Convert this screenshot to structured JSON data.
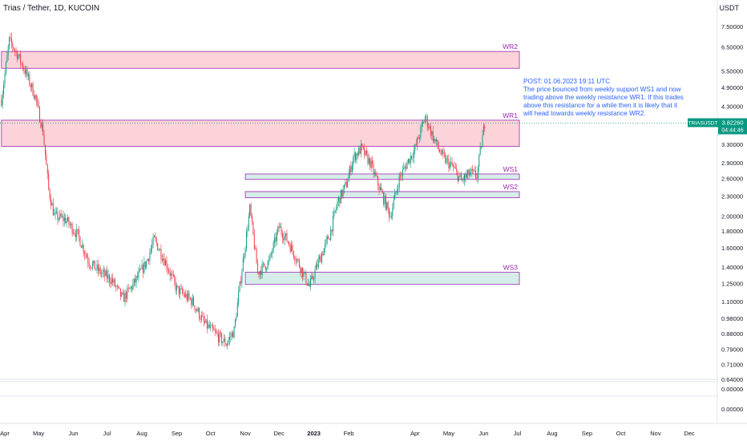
{
  "header": {
    "title": "Trias / Tether, 1D, KUCOIN",
    "currency": "USDT"
  },
  "note": {
    "line1": "POST: 01.06.2023 19:11 UTC",
    "line2": "The price bounced from weekly support WS1 and now trading above the weekly resistance WR1. If this trades above this resistance for a while then it is likely that it will head towards weekly resistance WR2."
  },
  "last_price": {
    "symbol": "TRIASUSDT",
    "price": "3.82260",
    "countdown": "04:44:46",
    "color": "#089981"
  },
  "colors": {
    "up": "#089981",
    "down": "#f23645",
    "resistance_fill": "#fccbd1",
    "resistance_border": "#9c27b0",
    "support_fill": "#cce8e4",
    "zone_label": "#9c27b0",
    "note_text": "#2962ff"
  },
  "chart_data": {
    "type": "candlestick",
    "title": "Trias / Tether, 1D, KUCOIN",
    "y_scale": "log",
    "y_ticks": [
      {
        "value": 7.5,
        "label": "7.50000"
      },
      {
        "value": 6.5,
        "label": "6.50000"
      },
      {
        "value": 5.5,
        "label": "5.50000"
      },
      {
        "value": 4.9,
        "label": "4.90000"
      },
      {
        "value": 4.3,
        "label": "4.30000"
      },
      {
        "value": 3.3,
        "label": "3.30000"
      },
      {
        "value": 2.9,
        "label": "2.90000"
      },
      {
        "value": 2.6,
        "label": "2.60000"
      },
      {
        "value": 2.3,
        "label": "2.30000"
      },
      {
        "value": 2.0,
        "label": "2.00000"
      },
      {
        "value": 1.8,
        "label": "1.80000"
      },
      {
        "value": 1.6,
        "label": "1.60000"
      },
      {
        "value": 1.4,
        "label": "1.40000"
      },
      {
        "value": 1.25,
        "label": "1.25000"
      },
      {
        "value": 1.1,
        "label": "1.10000"
      },
      {
        "value": 0.98,
        "label": "0.98000"
      },
      {
        "value": 0.88,
        "label": "0.88000"
      },
      {
        "value": 0.79,
        "label": "0.79000"
      },
      {
        "value": 0.71,
        "label": "0.71000"
      },
      {
        "value": 0.64,
        "label": "0.64000"
      }
    ],
    "pane_ticks": [
      "0.00000",
      "0.00000"
    ],
    "x_labels": [
      "Apr",
      "May",
      "Jun",
      "Jul",
      "Aug",
      "Sep",
      "Oct",
      "Nov",
      "Dec",
      "2023",
      "Feb",
      "Apr",
      "May",
      "Jun",
      "Jul",
      "Aug",
      "Sep",
      "Oct",
      "Nov",
      "Dec"
    ],
    "x_label_dates": [
      "2022-04-01",
      "2022-05-01",
      "2022-06-01",
      "2022-07-01",
      "2022-08-01",
      "2022-09-01",
      "2022-10-01",
      "2022-11-01",
      "2022-12-01",
      "2023-01-01",
      "2023-02-01",
      "2023-04-01",
      "2023-05-01",
      "2023-06-01",
      "2023-07-01",
      "2023-08-01",
      "2023-09-01",
      "2023-10-01",
      "2023-11-01",
      "2023-12-01"
    ],
    "series": [
      {
        "date": "2022-03-29",
        "close": 4.5
      },
      {
        "date": "2022-04-05",
        "close": 6.8
      },
      {
        "date": "2022-04-12",
        "close": 6.2
      },
      {
        "date": "2022-04-20",
        "close": 5.4
      },
      {
        "date": "2022-04-28",
        "close": 4.6
      },
      {
        "date": "2022-05-05",
        "close": 3.6
      },
      {
        "date": "2022-05-10",
        "close": 2.4
      },
      {
        "date": "2022-05-15",
        "close": 2.0
      },
      {
        "date": "2022-05-25",
        "close": 1.95
      },
      {
        "date": "2022-06-05",
        "close": 1.75
      },
      {
        "date": "2022-06-15",
        "close": 1.45
      },
      {
        "date": "2022-06-25",
        "close": 1.35
      },
      {
        "date": "2022-07-05",
        "close": 1.28
      },
      {
        "date": "2022-07-15",
        "close": 1.12
      },
      {
        "date": "2022-07-25",
        "close": 1.25
      },
      {
        "date": "2022-08-05",
        "close": 1.45
      },
      {
        "date": "2022-08-12",
        "close": 1.7
      },
      {
        "date": "2022-08-22",
        "close": 1.45
      },
      {
        "date": "2022-09-01",
        "close": 1.2
      },
      {
        "date": "2022-09-15",
        "close": 1.1
      },
      {
        "date": "2022-09-25",
        "close": 0.95
      },
      {
        "date": "2022-10-05",
        "close": 0.88
      },
      {
        "date": "2022-10-15",
        "close": 0.82
      },
      {
        "date": "2022-10-22",
        "close": 0.9
      },
      {
        "date": "2022-10-28",
        "close": 1.3
      },
      {
        "date": "2022-11-05",
        "close": 2.1
      },
      {
        "date": "2022-11-12",
        "close": 1.35
      },
      {
        "date": "2022-11-22",
        "close": 1.45
      },
      {
        "date": "2022-12-01",
        "close": 1.85
      },
      {
        "date": "2022-12-10",
        "close": 1.65
      },
      {
        "date": "2022-12-20",
        "close": 1.4
      },
      {
        "date": "2022-12-28",
        "close": 1.22
      },
      {
        "date": "2023-01-05",
        "close": 1.45
      },
      {
        "date": "2023-01-15",
        "close": 1.75
      },
      {
        "date": "2023-01-22",
        "close": 2.2
      },
      {
        "date": "2023-01-30",
        "close": 2.5
      },
      {
        "date": "2023-02-05",
        "close": 3.0
      },
      {
        "date": "2023-02-12",
        "close": 3.2
      },
      {
        "date": "2023-02-20",
        "close": 2.9
      },
      {
        "date": "2023-02-28",
        "close": 2.45
      },
      {
        "date": "2023-03-10",
        "close": 2.0
      },
      {
        "date": "2023-03-18",
        "close": 2.6
      },
      {
        "date": "2023-03-25",
        "close": 2.9
      },
      {
        "date": "2023-04-01",
        "close": 3.2
      },
      {
        "date": "2023-04-10",
        "close": 4.0
      },
      {
        "date": "2023-04-18",
        "close": 3.4
      },
      {
        "date": "2023-04-26",
        "close": 3.0
      },
      {
        "date": "2023-05-05",
        "close": 2.8
      },
      {
        "date": "2023-05-12",
        "close": 2.55
      },
      {
        "date": "2023-05-20",
        "close": 2.7
      },
      {
        "date": "2023-05-26",
        "close": 2.65
      },
      {
        "date": "2023-05-30",
        "close": 3.3
      },
      {
        "date": "2023-06-02",
        "close": 3.82
      }
    ],
    "zones": [
      {
        "label": "WR2",
        "kind": "resistance",
        "low": 5.6,
        "high": 6.3,
        "start": "2022-03-29"
      },
      {
        "label": "WR1",
        "kind": "resistance",
        "low": 3.25,
        "high": 3.9,
        "start": "2022-03-29"
      },
      {
        "label": "WS1",
        "kind": "support",
        "low": 2.58,
        "high": 2.68,
        "start": "2022-11-01"
      },
      {
        "label": "WS2",
        "kind": "support",
        "low": 2.27,
        "high": 2.37,
        "start": "2022-11-01"
      },
      {
        "label": "WS3",
        "kind": "support",
        "low": 1.24,
        "high": 1.35,
        "start": "2022-11-01"
      }
    ],
    "grid": false
  }
}
